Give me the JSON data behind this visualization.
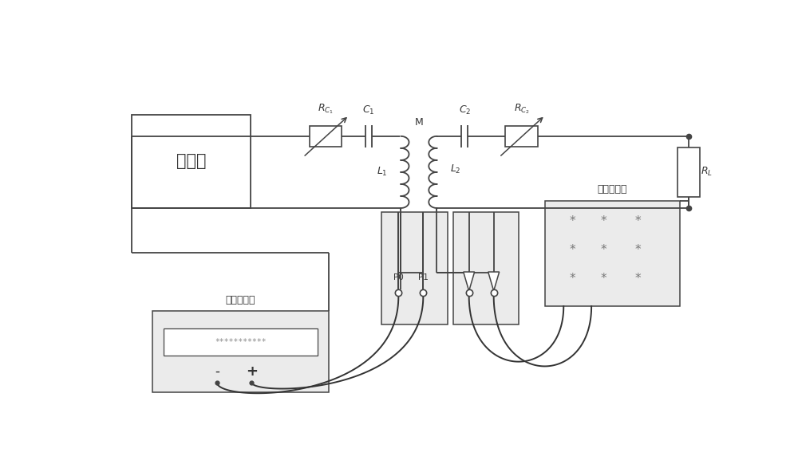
{
  "bg": "#ffffff",
  "lc": "#444444",
  "lw": 1.3,
  "fig_w": 10.0,
  "fig_h": 5.77,
  "inverter_label": "逆变器",
  "dc_label": "直流电压源",
  "ac_label": "交流电压表",
  "RC1": "$R_{C_1}$",
  "C1": "$C_1$",
  "L1": "$L_1$",
  "L2": "$L_2$",
  "C2": "$C_2$",
  "RC2": "$R_{C_2}$",
  "RL": "$R_L$",
  "M_label": "M",
  "stars": "* * *"
}
